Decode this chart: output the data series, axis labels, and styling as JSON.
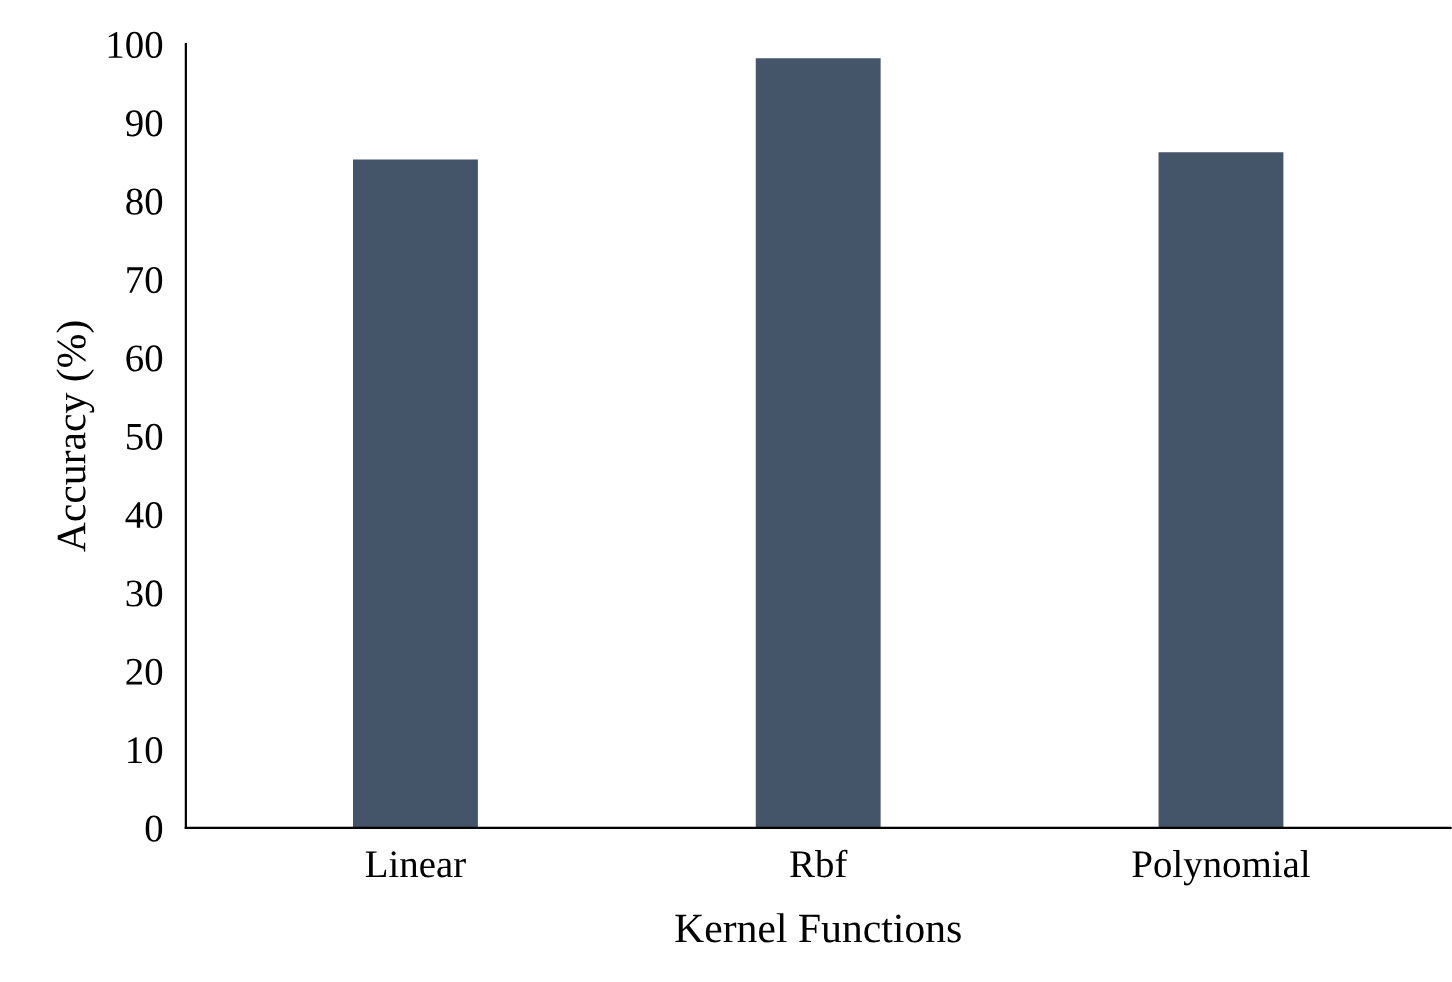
{
  "chart_data": {
    "type": "bar",
    "xlabel": "Kernel Functions",
    "ylabel": "Accuracy (%)",
    "categories": [
      "Linear",
      "Rbf",
      "Polynomial"
    ],
    "values": [
      85.3,
      98.2,
      86.2
    ],
    "color": "#445469",
    "ylim": [
      0,
      100
    ],
    "yticks": [
      0,
      10,
      20,
      30,
      40,
      50,
      60,
      70,
      80,
      90,
      100
    ],
    "grid": false,
    "legend": false
  }
}
